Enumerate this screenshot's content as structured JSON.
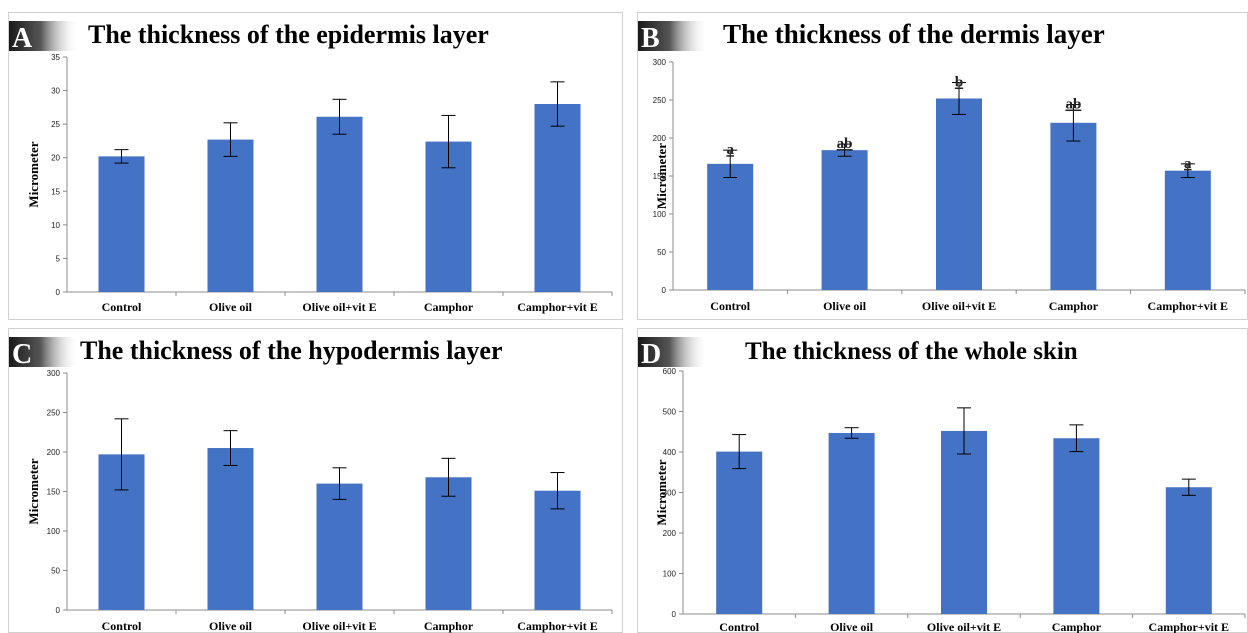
{
  "chart_data": [
    {
      "id": "A",
      "panel_letter": "A",
      "type": "bar",
      "title": "The thickness of the epidermis layer",
      "ylabel": "Micrometer",
      "ylim": [
        0,
        35
      ],
      "yticks": [
        0,
        5,
        10,
        15,
        20,
        25,
        30,
        35
      ],
      "categories": [
        "Control",
        "Olive oil",
        "Olive oil+vit E",
        "Camphor",
        "Camphor+vit E"
      ],
      "values": [
        20.2,
        22.7,
        26.1,
        22.4,
        28.0
      ],
      "errors": [
        1.0,
        2.5,
        2.6,
        3.9,
        3.3
      ],
      "significance": [],
      "color": "#4472c4"
    },
    {
      "id": "B",
      "panel_letter": "B",
      "type": "bar",
      "title": "The thickness of the dermis layer",
      "ylabel": "Micrometer",
      "ylim": [
        0,
        300
      ],
      "yticks": [
        0,
        50,
        100,
        150,
        200,
        250,
        300
      ],
      "categories": [
        "Control",
        "Olive oil",
        "Olive oil+vit E",
        "Camphor",
        "Camphor+vit E"
      ],
      "values": [
        166,
        184,
        252,
        220,
        157
      ],
      "errors": [
        18,
        8,
        21,
        24,
        9
      ],
      "significance": [
        "a",
        "ab",
        "b",
        "ab",
        "a"
      ],
      "color": "#4472c4"
    },
    {
      "id": "C",
      "panel_letter": "C",
      "type": "bar",
      "title": "The thickness of the hypodermis layer",
      "ylabel": "Micrometer",
      "ylim": [
        0,
        300
      ],
      "yticks": [
        0,
        50,
        100,
        150,
        200,
        250,
        300
      ],
      "categories": [
        "Control",
        "Olive oil",
        "Olive oil+vit E",
        "Camphor",
        "Camphor+vit E"
      ],
      "values": [
        197,
        205,
        160,
        168,
        151
      ],
      "errors": [
        45,
        22,
        20,
        24,
        23
      ],
      "significance": [],
      "color": "#4472c4"
    },
    {
      "id": "D",
      "panel_letter": "D",
      "type": "bar",
      "title": "The thickness of the whole skin",
      "ylabel": "Micrometer",
      "ylim": [
        0,
        600
      ],
      "yticks": [
        0,
        100,
        200,
        300,
        400,
        500,
        600
      ],
      "categories": [
        "Control",
        "Olive oil",
        "Olive oil+vit E",
        "Camphor",
        "Camphor+vit E"
      ],
      "values": [
        401,
        447,
        452,
        434,
        313
      ],
      "errors": [
        42,
        13,
        57,
        33,
        20
      ],
      "significance": [],
      "color": "#4472c4"
    }
  ]
}
